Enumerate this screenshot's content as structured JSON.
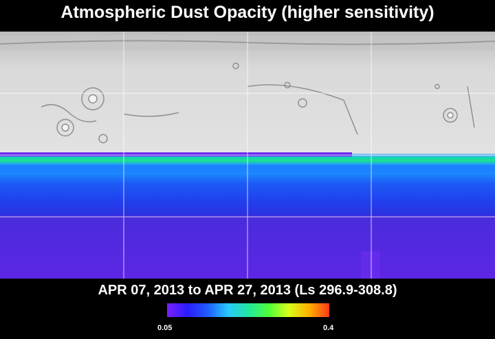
{
  "header": {
    "title": "Atmospheric Dust Opacity (higher sensitivity)"
  },
  "footer": {
    "date_range": "APR 07, 2013 to APR 27, 2013 (Ls 296.9-308.8)"
  },
  "colorbar": {
    "min_label": "0.05",
    "max_label": "0.4",
    "colors": [
      "#7a1fff",
      "#2b1cff",
      "#1f5cff",
      "#28c8ff",
      "#22e6a0",
      "#4cff3a",
      "#d8ff1a",
      "#ffb000",
      "#ff3a1a"
    ]
  },
  "map": {
    "surface_color": "#d4d4d4",
    "grid_color": "#ffffff",
    "overlay_bands": [
      {
        "color": "#6a2cf0"
      },
      {
        "color": "#15e08a"
      },
      {
        "color": "#1a86ff"
      },
      {
        "color": "#1f47f2"
      },
      {
        "color": "#2a2ee0"
      },
      {
        "color": "#4a2ad8"
      },
      {
        "color": "#5b28e0"
      }
    ]
  }
}
